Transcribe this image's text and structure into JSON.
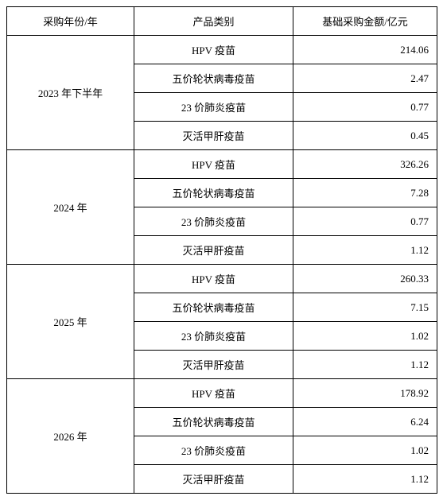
{
  "table": {
    "columns": [
      "采购年份/年",
      "产品类别",
      "基础采购金额/亿元"
    ],
    "groups": [
      {
        "year": "2023 年下半年",
        "rows": [
          {
            "product": "HPV 疫苗",
            "amount": "214.06"
          },
          {
            "product": "五价轮状病毒疫苗",
            "amount": "2.47"
          },
          {
            "product": "23 价肺炎疫苗",
            "amount": "0.77"
          },
          {
            "product": "灭活甲肝疫苗",
            "amount": "0.45"
          }
        ]
      },
      {
        "year": "2024 年",
        "rows": [
          {
            "product": "HPV 疫苗",
            "amount": "326.26"
          },
          {
            "product": "五价轮状病毒疫苗",
            "amount": "7.28"
          },
          {
            "product": "23 价肺炎疫苗",
            "amount": "0.77"
          },
          {
            "product": "灭活甲肝疫苗",
            "amount": "1.12"
          }
        ]
      },
      {
        "year": "2025 年",
        "rows": [
          {
            "product": "HPV 疫苗",
            "amount": "260.33"
          },
          {
            "product": "五价轮状病毒疫苗",
            "amount": "7.15"
          },
          {
            "product": "23 价肺炎疫苗",
            "amount": "1.02"
          },
          {
            "product": "灭活甲肝疫苗",
            "amount": "1.12"
          }
        ]
      },
      {
        "year": "2026 年",
        "rows": [
          {
            "product": "HPV 疫苗",
            "amount": "178.92"
          },
          {
            "product": "五价轮状病毒疫苗",
            "amount": "6.24"
          },
          {
            "product": "23 价肺炎疫苗",
            "amount": "1.02"
          },
          {
            "product": "灭活甲肝疫苗",
            "amount": "1.12"
          }
        ]
      }
    ]
  }
}
